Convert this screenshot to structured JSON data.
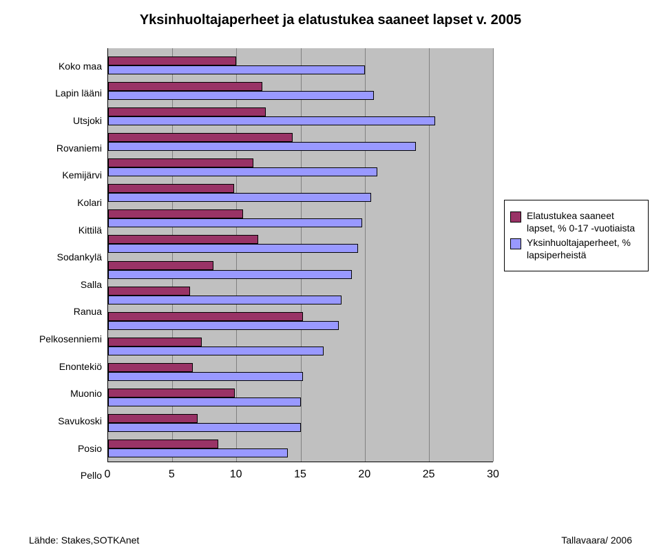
{
  "title": "Yksinhuoltajaperheet ja elatustukea saaneet lapset v. 2005",
  "footer_left": "Lähde: Stakes,SOTKAnet",
  "footer_right": "Tallavaara/ 2006",
  "chart": {
    "type": "bar",
    "x_min": 0,
    "x_max": 30,
    "x_tick_step": 5,
    "grid_color": "#808080",
    "background_color": "#c0c0c0",
    "series": [
      {
        "label": "Elatustukea saaneet lapset, % 0-17 -vuotiaista",
        "color": "#993366"
      },
      {
        "label": "Yksinhuoltajaperheet, % lapsiperheistä",
        "color": "#9999ff"
      }
    ],
    "categories": [
      {
        "label": "Koko maa",
        "values": [
          10.0,
          20.0
        ]
      },
      {
        "label": "Lapin lääni",
        "values": [
          12.0,
          20.7
        ]
      },
      {
        "label": "Utsjoki",
        "values": [
          12.3,
          25.5
        ]
      },
      {
        "label": "Rovaniemi",
        "values": [
          14.4,
          24.0
        ]
      },
      {
        "label": "Kemijärvi",
        "values": [
          11.3,
          21.0
        ]
      },
      {
        "label": "Kolari",
        "values": [
          9.8,
          20.5
        ]
      },
      {
        "label": "Kittilä",
        "values": [
          10.5,
          19.8
        ]
      },
      {
        "label": "Sodankylä",
        "values": [
          11.7,
          19.5
        ]
      },
      {
        "label": "Salla",
        "values": [
          8.2,
          19.0
        ]
      },
      {
        "label": "Ranua",
        "values": [
          6.4,
          18.2
        ]
      },
      {
        "label": "Pelkosenniemi",
        "values": [
          15.2,
          18.0
        ]
      },
      {
        "label": "Enontekiö",
        "values": [
          7.3,
          16.8
        ]
      },
      {
        "label": "Muonio",
        "values": [
          6.6,
          15.2
        ]
      },
      {
        "label": "Savukoski",
        "values": [
          9.9,
          15.0
        ]
      },
      {
        "label": "Posio",
        "values": [
          7.0,
          15.0
        ]
      },
      {
        "label": "Pello",
        "values": [
          8.6,
          14.0
        ]
      }
    ]
  }
}
